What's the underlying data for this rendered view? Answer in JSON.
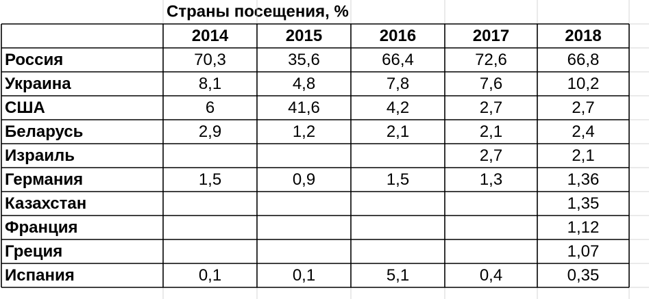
{
  "title": "Страны посещения, %",
  "table": {
    "header": [
      "2014",
      "2015",
      "2016",
      "2017",
      "2018"
    ],
    "rows": [
      [
        "Россия",
        "70,3",
        "35,6",
        "66,4",
        "72,6",
        "66,8"
      ],
      [
        "Украина",
        "8,1",
        "4,8",
        "7,8",
        "7,6",
        "10,2"
      ],
      [
        "США",
        "6",
        "41,6",
        "4,2",
        "2,7",
        "2,7"
      ],
      [
        "Беларусь",
        "2,9",
        "1,2",
        "2,1",
        "2,1",
        "2,4"
      ],
      [
        "Израиль",
        null,
        null,
        null,
        "2,7",
        "2,1"
      ],
      [
        "Германия",
        "1,5",
        "0,9",
        "1,5",
        "1,3",
        "1,36"
      ],
      [
        "Казахстан",
        null,
        null,
        null,
        null,
        "1,35"
      ],
      [
        "Франция",
        null,
        null,
        null,
        null,
        "1,12"
      ],
      [
        "Греция",
        null,
        null,
        null,
        null,
        "1,07"
      ],
      [
        "Испания",
        "0,1",
        "0,1",
        "5,1",
        "0,4",
        "0,35"
      ]
    ]
  }
}
